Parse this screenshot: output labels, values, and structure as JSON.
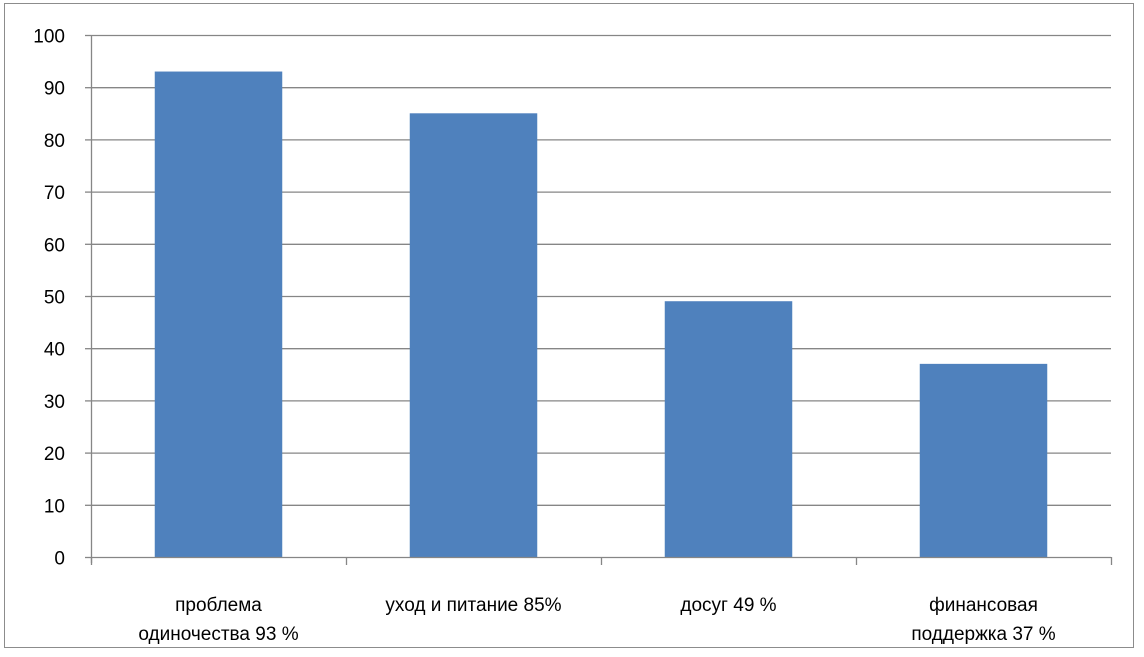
{
  "chart_data": {
    "type": "bar",
    "title": "",
    "xlabel": "",
    "ylabel": "",
    "categories": [
      [
        "проблема",
        "одиночества 93 %"
      ],
      [
        "уход и питание 85%"
      ],
      [
        "досуг 49 %"
      ],
      [
        "финансовая",
        "поддержка 37 %"
      ]
    ],
    "values": [
      93,
      85,
      49,
      37
    ],
    "ylim": [
      0,
      100
    ],
    "yticks": [
      0,
      10,
      20,
      30,
      40,
      50,
      60,
      70,
      80,
      90,
      100
    ],
    "grid": true,
    "legend": "none",
    "bar_color": "#4F81BD",
    "grid_color": "#868686"
  }
}
